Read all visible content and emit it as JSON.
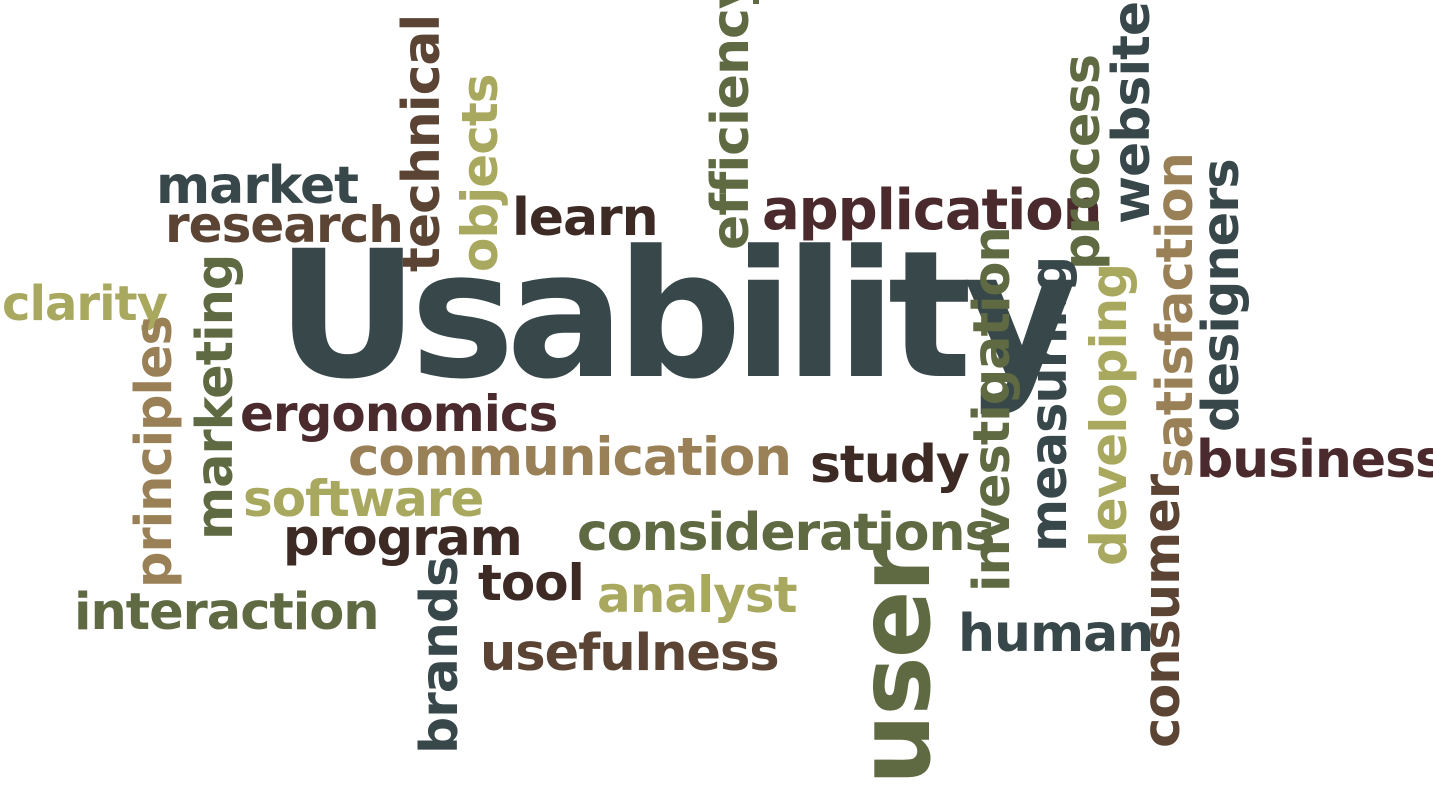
{
  "words": {
    "usability": "Usability",
    "user": "user",
    "application": "application",
    "communication": "communication",
    "considerations": "considerations",
    "ergonomics": "ergonomics",
    "business": "business",
    "market": "market",
    "research": "research",
    "learn": "learn",
    "clarity": "clarity",
    "software": "software",
    "program": "program",
    "interaction": "interaction",
    "tool": "tool",
    "analyst": "analyst",
    "usefulness": "usefulness",
    "study": "study",
    "human": "human",
    "technical": "technical",
    "objects": "objects",
    "efficiency": "efficiency",
    "process": "process",
    "website": "website",
    "satisfaction": "satisfaction",
    "designers": "designers",
    "investigation": "investigation",
    "measuring": "measuring",
    "developing": "developing",
    "consumer": "consumer",
    "marketing": "marketing",
    "principles": "principles",
    "brands": "brands"
  },
  "colors": {
    "slate": "#37474a",
    "dark_brown": "#3e2a25",
    "plum": "#4a2a2c",
    "olive": "#5f6a42",
    "khaki": "#a8a85e",
    "tan": "#9a8056",
    "brown": "#5b4434"
  }
}
